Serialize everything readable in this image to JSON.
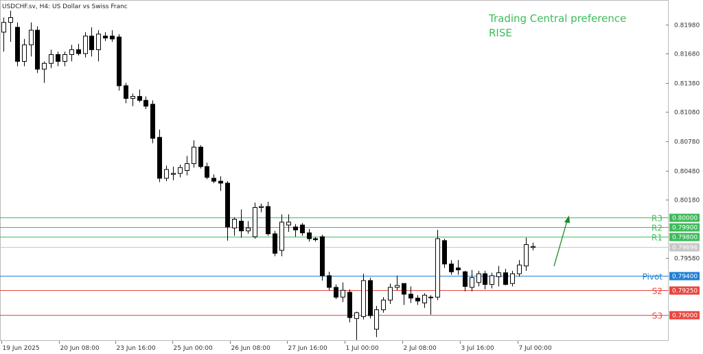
{
  "header": {
    "symbol_line": "USDCHF.sv, H4:  US Dollar vs Swiss Franc"
  },
  "preference": {
    "line1": "Trading Central preference",
    "line2": "RISE",
    "color": "#3dbb5a"
  },
  "colors": {
    "green_level": "#3dbb5a",
    "blue_level": "#1f7fd4",
    "red_level": "#e8463f",
    "current_price": "#c7c7c7",
    "bull_body": "#ffffff",
    "bear_body": "#000000",
    "candle_line": "#000000",
    "arrow": "#1a8a2a"
  },
  "chart_data": {
    "type": "candlestick",
    "x_labels": [
      "19 Jun 2025",
      "20 Jun 08:00",
      "23 Jun 16:00",
      "25 Jun 00:00",
      "26 Jun 08:00",
      "27 Jun 16:00",
      "1 Jul 00:00",
      "2 Jul 08:00",
      "3 Jul 16:00",
      "7 Jul 00:00"
    ],
    "y_ticks": [
      "0.81980",
      "0.81680",
      "0.81380",
      "0.81080",
      "0.80780",
      "0.80480",
      "0.80180",
      "0.79580"
    ],
    "ylim": [
      0.7873,
      0.8223
    ],
    "levels": [
      {
        "name": "R3",
        "value": 0.8,
        "label": "0.80000",
        "color": "#3dbb5a"
      },
      {
        "name": "R2",
        "value": 0.799,
        "label": "0.79900",
        "color": "#3dbb5a"
      },
      {
        "name": "R1",
        "value": 0.798,
        "label": "0.79800",
        "color": "#3dbb5a"
      },
      {
        "name": "Pivot",
        "value": 0.794,
        "label": "0.79400",
        "color": "#1f7fd4"
      },
      {
        "name": "S2",
        "value": 0.7925,
        "label": "0.79250",
        "color": "#e8463f"
      },
      {
        "name": "S3",
        "value": 0.79,
        "label": "0.79000",
        "color": "#e8463f"
      }
    ],
    "current_price": {
      "value": 0.79696,
      "label": "0.79696"
    },
    "candles": [
      {
        "o": 0.819,
        "h": 0.8205,
        "l": 0.817,
        "c": 0.82
      },
      {
        "o": 0.82,
        "h": 0.8212,
        "l": 0.818,
        "c": 0.8205
      },
      {
        "o": 0.8195,
        "h": 0.82,
        "l": 0.8155,
        "c": 0.816
      },
      {
        "o": 0.816,
        "h": 0.8183,
        "l": 0.8155,
        "c": 0.8177
      },
      {
        "o": 0.8177,
        "h": 0.82,
        "l": 0.8165,
        "c": 0.8192
      },
      {
        "o": 0.8192,
        "h": 0.8196,
        "l": 0.8148,
        "c": 0.8152
      },
      {
        "o": 0.8152,
        "h": 0.816,
        "l": 0.8138,
        "c": 0.8158
      },
      {
        "o": 0.8158,
        "h": 0.8172,
        "l": 0.8153,
        "c": 0.8167
      },
      {
        "o": 0.8167,
        "h": 0.817,
        "l": 0.8155,
        "c": 0.816
      },
      {
        "o": 0.816,
        "h": 0.817,
        "l": 0.8155,
        "c": 0.8167
      },
      {
        "o": 0.8167,
        "h": 0.8177,
        "l": 0.816,
        "c": 0.8172
      },
      {
        "o": 0.8172,
        "h": 0.8178,
        "l": 0.8166,
        "c": 0.8168
      },
      {
        "o": 0.8168,
        "h": 0.819,
        "l": 0.8164,
        "c": 0.8186
      },
      {
        "o": 0.8186,
        "h": 0.8195,
        "l": 0.8165,
        "c": 0.8172
      },
      {
        "o": 0.8172,
        "h": 0.8192,
        "l": 0.816,
        "c": 0.8188
      },
      {
        "o": 0.8186,
        "h": 0.819,
        "l": 0.8181,
        "c": 0.8184
      },
      {
        "o": 0.8186,
        "h": 0.8192,
        "l": 0.818,
        "c": 0.8183
      },
      {
        "o": 0.8185,
        "h": 0.8188,
        "l": 0.813,
        "c": 0.8135
      },
      {
        "o": 0.8135,
        "h": 0.8138,
        "l": 0.8117,
        "c": 0.8122
      },
      {
        "o": 0.8122,
        "h": 0.8127,
        "l": 0.8114,
        "c": 0.8124
      },
      {
        "o": 0.8124,
        "h": 0.8131,
        "l": 0.8118,
        "c": 0.812
      },
      {
        "o": 0.812,
        "h": 0.8124,
        "l": 0.8111,
        "c": 0.8114
      },
      {
        "o": 0.8116,
        "h": 0.812,
        "l": 0.8076,
        "c": 0.8081
      },
      {
        "o": 0.8082,
        "h": 0.809,
        "l": 0.8036,
        "c": 0.804
      },
      {
        "o": 0.804,
        "h": 0.8053,
        "l": 0.8037,
        "c": 0.8049
      },
      {
        "o": 0.8044,
        "h": 0.8052,
        "l": 0.8038,
        "c": 0.8045
      },
      {
        "o": 0.8045,
        "h": 0.8054,
        "l": 0.8041,
        "c": 0.8051
      },
      {
        "o": 0.8048,
        "h": 0.8063,
        "l": 0.8043,
        "c": 0.8055
      },
      {
        "o": 0.8055,
        "h": 0.8079,
        "l": 0.8051,
        "c": 0.8072
      },
      {
        "o": 0.8072,
        "h": 0.8074,
        "l": 0.805,
        "c": 0.8052
      },
      {
        "o": 0.8052,
        "h": 0.8056,
        "l": 0.8039,
        "c": 0.8041
      },
      {
        "o": 0.804,
        "h": 0.8044,
        "l": 0.8035,
        "c": 0.8037
      },
      {
        "o": 0.8037,
        "h": 0.8042,
        "l": 0.8027,
        "c": 0.8035
      },
      {
        "o": 0.8035,
        "h": 0.8037,
        "l": 0.7976,
        "c": 0.799
      },
      {
        "o": 0.7989,
        "h": 0.8,
        "l": 0.7981,
        "c": 0.7998
      },
      {
        "o": 0.7996,
        "h": 0.8008,
        "l": 0.7979,
        "c": 0.7986
      },
      {
        "o": 0.7986,
        "h": 0.7996,
        "l": 0.7983,
        "c": 0.7989
      },
      {
        "o": 0.798,
        "h": 0.8015,
        "l": 0.7978,
        "c": 0.801
      },
      {
        "o": 0.801,
        "h": 0.8014,
        "l": 0.8005,
        "c": 0.8011
      },
      {
        "o": 0.8011,
        "h": 0.8016,
        "l": 0.7981,
        "c": 0.7983
      },
      {
        "o": 0.7983,
        "h": 0.7986,
        "l": 0.796,
        "c": 0.7963
      },
      {
        "o": 0.7966,
        "h": 0.8003,
        "l": 0.796,
        "c": 0.7995
      },
      {
        "o": 0.7992,
        "h": 0.8003,
        "l": 0.7985,
        "c": 0.7995
      },
      {
        "o": 0.799,
        "h": 0.7993,
        "l": 0.798,
        "c": 0.7987
      },
      {
        "o": 0.7992,
        "h": 0.7994,
        "l": 0.7981,
        "c": 0.7984
      },
      {
        "o": 0.7984,
        "h": 0.7988,
        "l": 0.7975,
        "c": 0.7978
      },
      {
        "o": 0.7978,
        "h": 0.798,
        "l": 0.7975,
        "c": 0.7977
      },
      {
        "o": 0.798,
        "h": 0.7982,
        "l": 0.7935,
        "c": 0.794
      },
      {
        "o": 0.794,
        "h": 0.7944,
        "l": 0.7925,
        "c": 0.7928
      },
      {
        "o": 0.7928,
        "h": 0.7931,
        "l": 0.7916,
        "c": 0.7918
      },
      {
        "o": 0.7918,
        "h": 0.7933,
        "l": 0.7913,
        "c": 0.7925
      },
      {
        "o": 0.7923,
        "h": 0.7926,
        "l": 0.7892,
        "c": 0.7897
      },
      {
        "o": 0.7896,
        "h": 0.7903,
        "l": 0.7874,
        "c": 0.7902
      },
      {
        "o": 0.7898,
        "h": 0.7942,
        "l": 0.7895,
        "c": 0.7935
      },
      {
        "o": 0.7935,
        "h": 0.7938,
        "l": 0.7896,
        "c": 0.7899
      },
      {
        "o": 0.7885,
        "h": 0.7909,
        "l": 0.7877,
        "c": 0.7905
      },
      {
        "o": 0.7905,
        "h": 0.7918,
        "l": 0.7902,
        "c": 0.7915
      },
      {
        "o": 0.7915,
        "h": 0.7932,
        "l": 0.7911,
        "c": 0.7928
      },
      {
        "o": 0.7928,
        "h": 0.794,
        "l": 0.7925,
        "c": 0.793
      },
      {
        "o": 0.7932,
        "h": 0.7932,
        "l": 0.791,
        "c": 0.7921
      },
      {
        "o": 0.7921,
        "h": 0.7929,
        "l": 0.7912,
        "c": 0.7917
      },
      {
        "o": 0.7917,
        "h": 0.792,
        "l": 0.791,
        "c": 0.7914
      },
      {
        "o": 0.7912,
        "h": 0.7922,
        "l": 0.7907,
        "c": 0.792
      },
      {
        "o": 0.7918,
        "h": 0.792,
        "l": 0.79,
        "c": 0.7918
      },
      {
        "o": 0.7918,
        "h": 0.7987,
        "l": 0.7915,
        "c": 0.7978
      },
      {
        "o": 0.7976,
        "h": 0.7978,
        "l": 0.7948,
        "c": 0.7952
      },
      {
        "o": 0.7952,
        "h": 0.7956,
        "l": 0.7941,
        "c": 0.7944
      },
      {
        "o": 0.7948,
        "h": 0.7956,
        "l": 0.7941,
        "c": 0.7946
      },
      {
        "o": 0.7944,
        "h": 0.7945,
        "l": 0.7924,
        "c": 0.7929
      },
      {
        "o": 0.7928,
        "h": 0.7946,
        "l": 0.7924,
        "c": 0.7938
      },
      {
        "o": 0.7933,
        "h": 0.7945,
        "l": 0.7929,
        "c": 0.7942
      },
      {
        "o": 0.7942,
        "h": 0.7945,
        "l": 0.7926,
        "c": 0.7931
      },
      {
        "o": 0.7931,
        "h": 0.7943,
        "l": 0.7927,
        "c": 0.794
      },
      {
        "o": 0.7939,
        "h": 0.795,
        "l": 0.7929,
        "c": 0.7943
      },
      {
        "o": 0.7943,
        "h": 0.7947,
        "l": 0.793,
        "c": 0.7931
      },
      {
        "o": 0.7932,
        "h": 0.7945,
        "l": 0.7929,
        "c": 0.7942
      },
      {
        "o": 0.7942,
        "h": 0.7956,
        "l": 0.7939,
        "c": 0.7951
      },
      {
        "o": 0.795,
        "h": 0.7979,
        "l": 0.7945,
        "c": 0.7972
      },
      {
        "o": 0.7969,
        "h": 0.7974,
        "l": 0.7966,
        "c": 0.797
      }
    ]
  }
}
